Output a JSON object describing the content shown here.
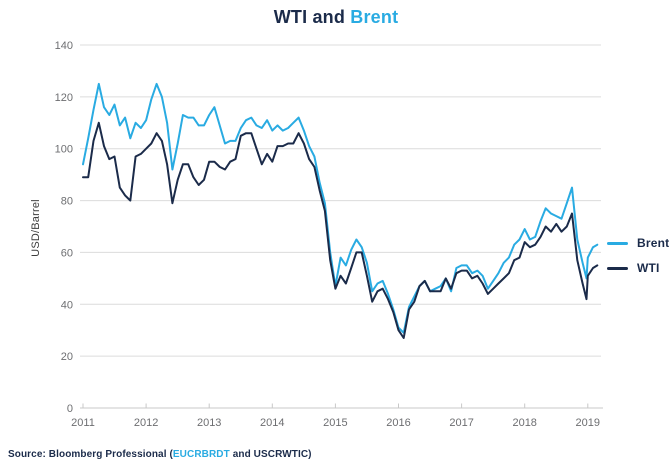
{
  "title": {
    "part1": "WTI and ",
    "part2": "Brent"
  },
  "colors": {
    "navy": "#1b2b4a",
    "blue": "#29abe2",
    "gridline": "#dcdcdc",
    "axis": "#c8c8c8",
    "tick_text": "#6d6e71"
  },
  "axes": {
    "y_label": "USD/Barrel"
  },
  "legend": [
    {
      "label": "Brent",
      "color": "#29abe2"
    },
    {
      "label": "WTI",
      "color": "#1b2b4a"
    }
  ],
  "source": {
    "prefix": "Source: Bloomberg Professional (",
    "ticker_blue": "EUCRBRDT",
    "suffix": " and USCRWTIC)"
  },
  "chart_data": {
    "type": "line",
    "title": "WTI and Brent",
    "xlabel": "",
    "ylabel": "USD/Barrel",
    "ylim": [
      0,
      140
    ],
    "y_ticks": [
      0,
      20,
      40,
      60,
      80,
      100,
      120,
      140
    ],
    "x_ticks": [
      2011,
      2012,
      2013,
      2014,
      2015,
      2016,
      2017,
      2018,
      2019
    ],
    "grid": "horizontal",
    "legend_position": "right",
    "x": [
      2011.0,
      2011.083,
      2011.167,
      2011.25,
      2011.333,
      2011.417,
      2011.5,
      2011.583,
      2011.667,
      2011.75,
      2011.833,
      2011.917,
      2012.0,
      2012.083,
      2012.167,
      2012.25,
      2012.333,
      2012.417,
      2012.5,
      2012.583,
      2012.667,
      2012.75,
      2012.833,
      2012.917,
      2013.0,
      2013.083,
      2013.167,
      2013.25,
      2013.333,
      2013.417,
      2013.5,
      2013.583,
      2013.667,
      2013.75,
      2013.833,
      2013.917,
      2014.0,
      2014.083,
      2014.167,
      2014.25,
      2014.333,
      2014.417,
      2014.5,
      2014.583,
      2014.667,
      2014.75,
      2014.833,
      2014.917,
      2015.0,
      2015.083,
      2015.167,
      2015.25,
      2015.333,
      2015.417,
      2015.5,
      2015.583,
      2015.667,
      2015.75,
      2015.833,
      2015.917,
      2016.0,
      2016.083,
      2016.167,
      2016.25,
      2016.333,
      2016.417,
      2016.5,
      2016.583,
      2016.667,
      2016.75,
      2016.833,
      2016.917,
      2017.0,
      2017.083,
      2017.167,
      2017.25,
      2017.333,
      2017.417,
      2017.5,
      2017.583,
      2017.667,
      2017.75,
      2017.833,
      2017.917,
      2018.0,
      2018.083,
      2018.167,
      2018.25,
      2018.333,
      2018.417,
      2018.5,
      2018.583,
      2018.667,
      2018.75,
      2018.833,
      2018.917,
      2018.979,
      2019.0,
      2019.083,
      2019.15
    ],
    "series": [
      {
        "name": "Brent",
        "color": "#29abe2",
        "values": [
          94,
          104,
          115,
          125,
          116,
          113,
          117,
          109,
          112,
          104,
          110,
          108,
          111,
          119,
          125,
          120,
          110,
          92,
          102,
          113,
          112,
          112,
          109,
          109,
          113,
          116,
          109,
          102,
          103,
          103,
          108,
          111,
          112,
          109,
          108,
          111,
          107,
          109,
          107,
          108,
          110,
          112,
          107,
          101,
          97,
          87,
          79,
          60,
          47,
          58,
          55,
          61,
          65,
          62,
          56,
          45,
          48,
          49,
          44,
          38,
          31,
          29,
          39,
          43,
          47,
          49,
          45,
          46,
          47,
          50,
          45,
          54,
          55,
          55,
          52,
          53,
          51,
          46,
          49,
          52,
          56,
          58,
          63,
          65,
          69,
          65,
          66,
          72,
          77,
          75,
          74,
          73,
          79,
          85,
          65,
          56,
          50,
          58,
          62,
          63
        ]
      },
      {
        "name": "WTI",
        "color": "#1b2b4a",
        "values": [
          89,
          89,
          103,
          110,
          101,
          96,
          97,
          85,
          82,
          80,
          97,
          98,
          100,
          102,
          106,
          103,
          94,
          79,
          88,
          94,
          94,
          89,
          86,
          88,
          95,
          95,
          93,
          92,
          95,
          96,
          105,
          106,
          106,
          100,
          94,
          98,
          95,
          101,
          101,
          102,
          102,
          106,
          102,
          96,
          93,
          84,
          76,
          57,
          46,
          51,
          48,
          54,
          60,
          60,
          51,
          41,
          45,
          46,
          42,
          37,
          30,
          27,
          38,
          41,
          47,
          49,
          45,
          45,
          45,
          50,
          46,
          52,
          53,
          53,
          50,
          51,
          48,
          44,
          46,
          48,
          50,
          52,
          57,
          58,
          64,
          62,
          63,
          66,
          70,
          68,
          71,
          68,
          70,
          75,
          57,
          48,
          42,
          51,
          54,
          55
        ]
      }
    ]
  }
}
